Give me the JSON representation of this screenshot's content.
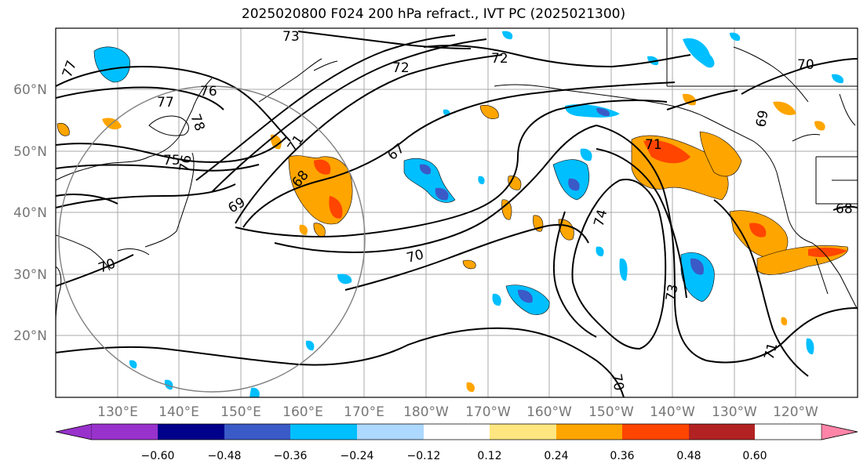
{
  "title": "2025020800 F024 200 hPa refract., IVT PC (2025021300)",
  "lat_labels": [
    "60°N",
    "50°N",
    "40°N",
    "30°N",
    "20°N"
  ],
  "lon_labels": [
    "130°E",
    "140°E",
    "150°E",
    "160°E",
    "170°E",
    "180°W",
    "170°W",
    "160°W",
    "150°W",
    "140°W",
    "130°W",
    "120°W"
  ],
  "colorbar": {
    "tick_labels": [
      "−0.60",
      "−0.48",
      "−0.36",
      "−0.24",
      "−0.12",
      "0.12",
      "0.24",
      "0.36",
      "0.48",
      "0.60"
    ],
    "colors": [
      "#9932CC",
      "#00008B",
      "#3A5BC7",
      "#00BFFF",
      "#ADD8FF",
      "#FFFFFF",
      "#FFE680",
      "#FFA500",
      "#FF4500",
      "#B22222",
      "#FF85A8"
    ]
  },
  "contour_labels": [
    "73",
    "72",
    "72",
    "70",
    "77",
    "76",
    "77",
    "78",
    "75",
    "76",
    "71",
    "68",
    "67",
    "69",
    "70",
    "70",
    "71",
    "74",
    "73",
    "71",
    "70",
    "68",
    "69"
  ],
  "fill_colors": {
    "cyan": "#00BFFF",
    "blue": "#3A5BC7",
    "orange": "#FFA500",
    "red": "#FF4500",
    "yellow": "#FFE680",
    "lightblue": "#ADD8FF"
  }
}
